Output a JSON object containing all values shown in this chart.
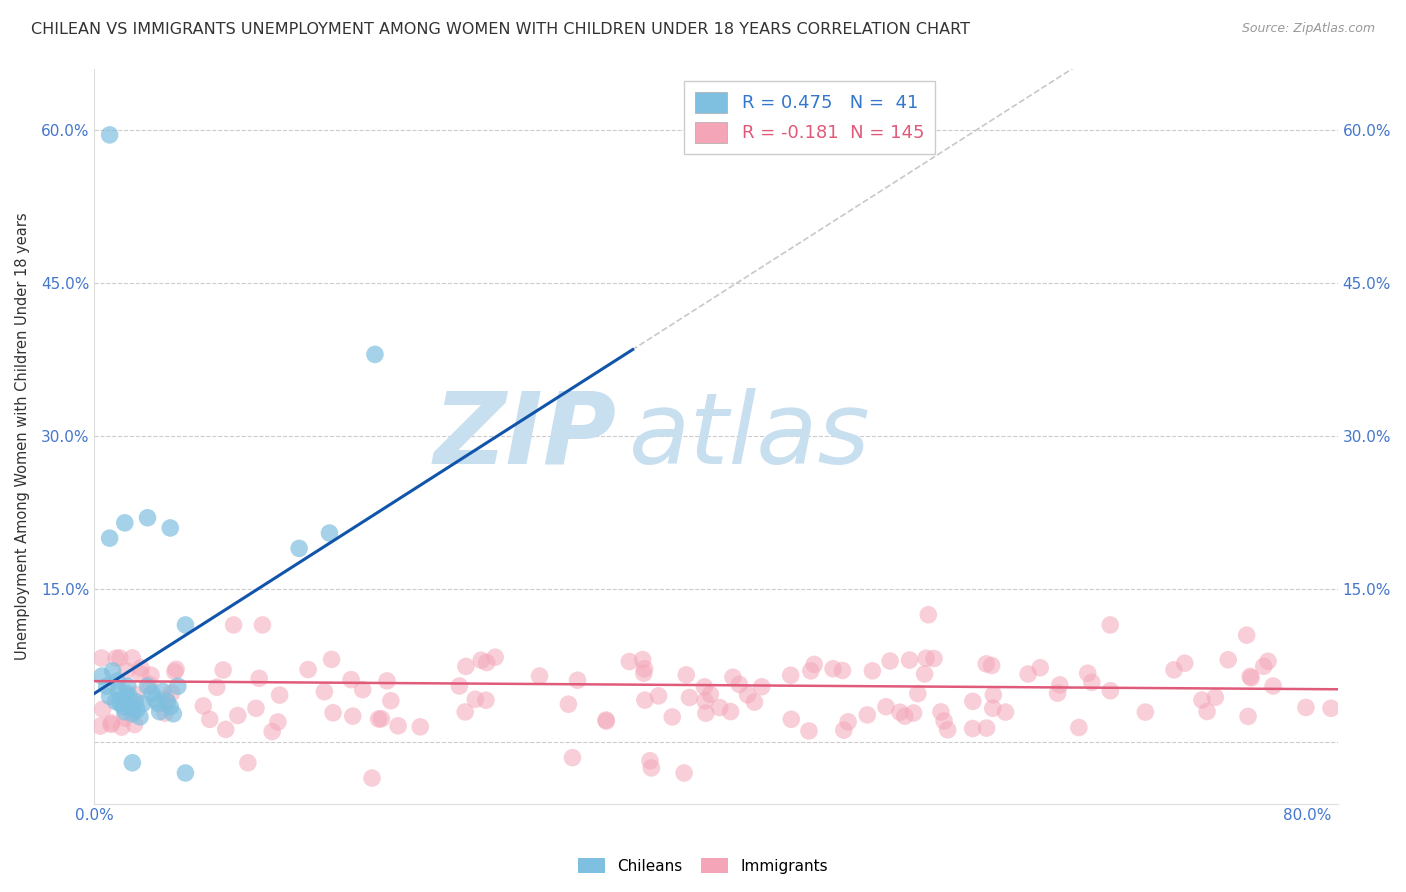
{
  "title": "CHILEAN VS IMMIGRANTS UNEMPLOYMENT AMONG WOMEN WITH CHILDREN UNDER 18 YEARS CORRELATION CHART",
  "source": "Source: ZipAtlas.com",
  "ylabel": "Unemployment Among Women with Children Under 18 years",
  "xlim": [
    0.0,
    0.82
  ],
  "ylim": [
    0.0,
    0.65
  ],
  "yticks": [
    0.0,
    0.15,
    0.3,
    0.45,
    0.6
  ],
  "ytick_labels": [
    "",
    "15.0%",
    "30.0%",
    "45.0%",
    "60.0%"
  ],
  "ytick_labels_right": [
    "",
    "15.0%",
    "30.0%",
    "45.0%",
    "60.0%"
  ],
  "xtick_labels": [
    "0.0%",
    "",
    "",
    "",
    "80.0%"
  ],
  "chilean_R": 0.475,
  "chilean_N": 41,
  "immigrant_R": -0.181,
  "immigrant_N": 145,
  "chilean_color": "#7fbfdf",
  "immigrant_color": "#f4a6b8",
  "chilean_line_color": "#1155aa",
  "immigrant_line_color": "#e05a7a",
  "background_color": "#ffffff",
  "watermark_zip_color": "#c8dff0",
  "watermark_atlas_color": "#c8dff0",
  "title_fontsize": 11.5,
  "legend_R_color_chilean": "#3378cc",
  "legend_R_color_immigrant": "#e05a7a",
  "dashed_line_color": "#bbbbbb",
  "grid_color": "#cccccc",
  "tick_color": "#4477cc"
}
